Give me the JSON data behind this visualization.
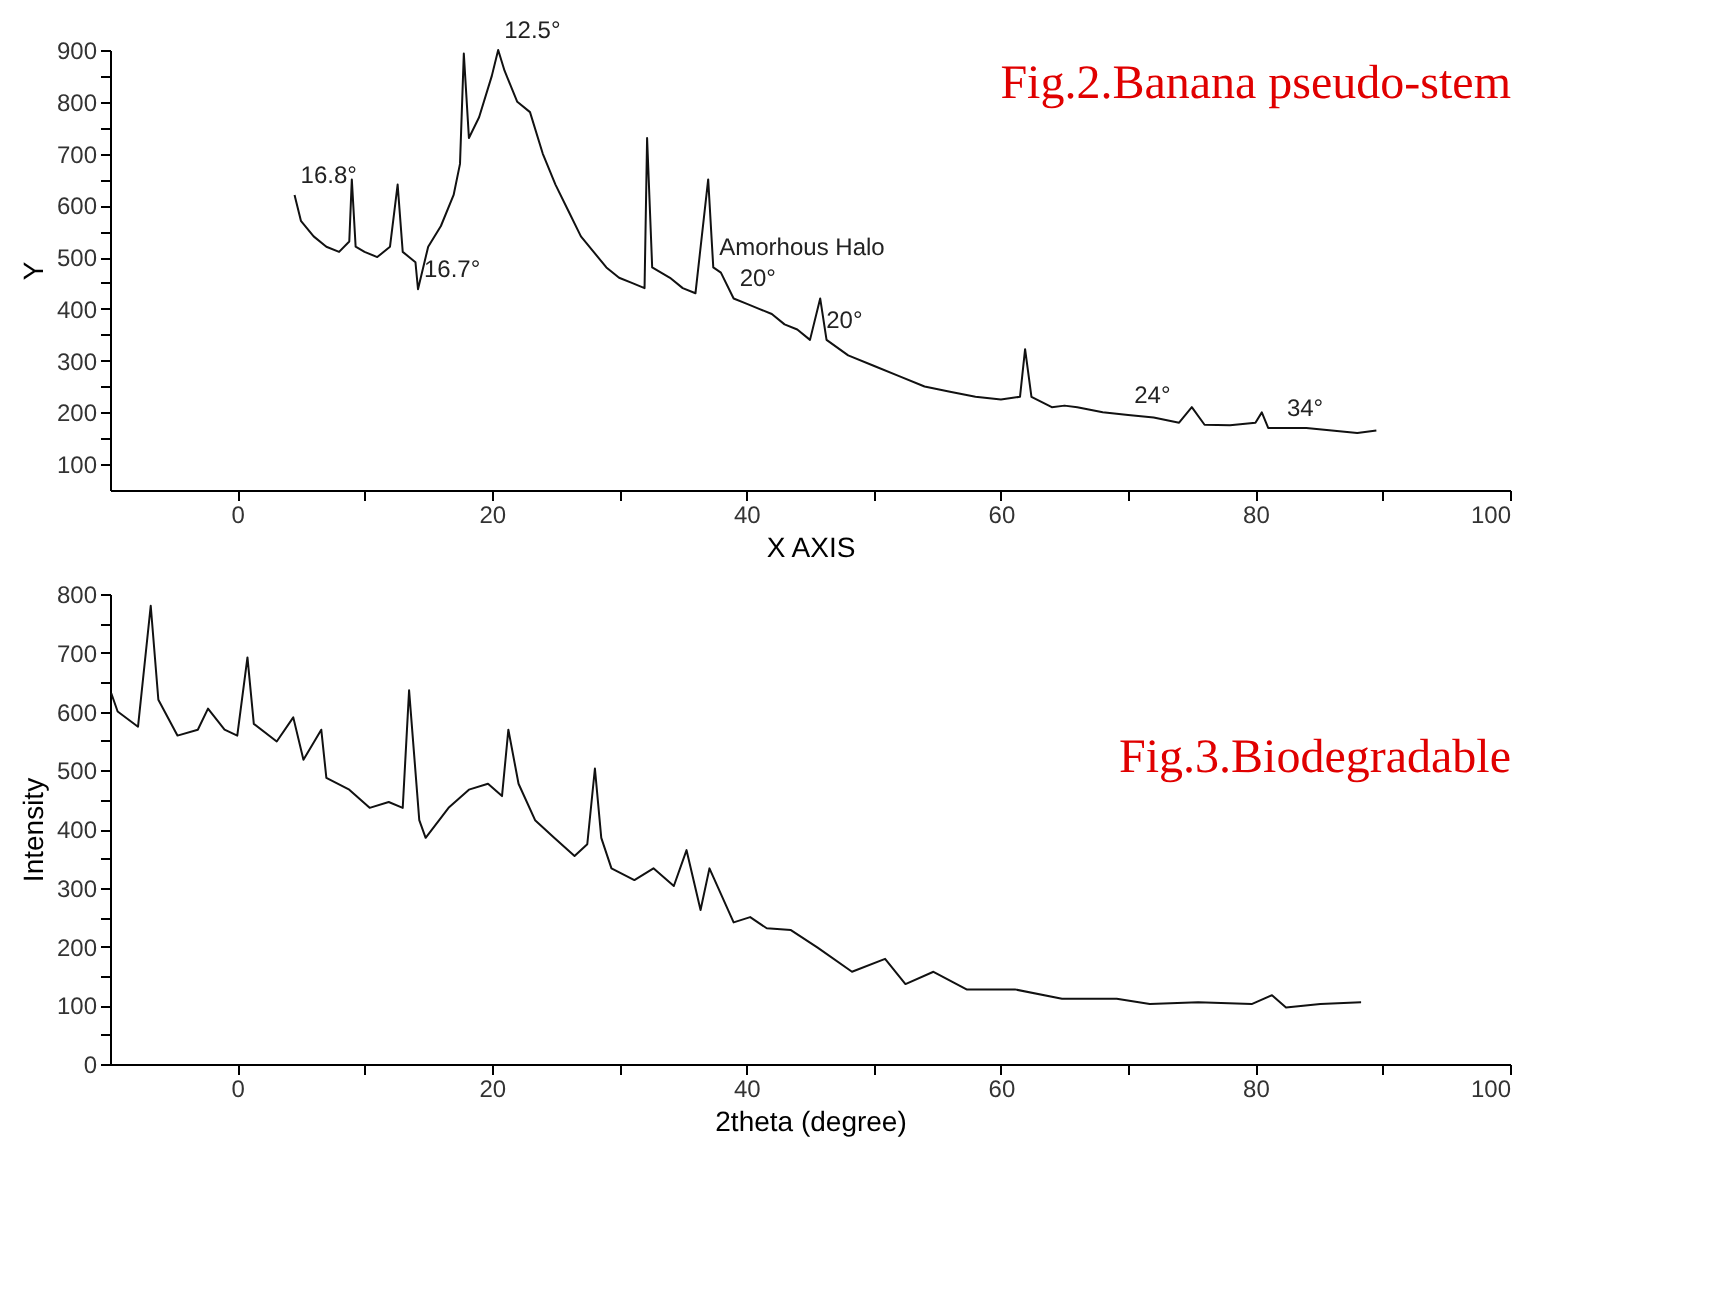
{
  "chart_data": [
    {
      "type": "line",
      "title": "Fig.2.Banana pseudo-stem",
      "xlabel": "X AXIS",
      "ylabel": "Y",
      "xlim": [
        -10,
        100
      ],
      "ylim": [
        50,
        900
      ],
      "xticks": [
        0,
        {
          "value": 10,
          "label": null
        },
        20,
        {
          "value": 30,
          "label": null
        },
        40,
        {
          "value": 50,
          "label": null
        },
        60,
        {
          "value": 70,
          "label": null
        },
        80,
        {
          "value": 90,
          "label": null
        },
        100
      ],
      "yticks": [
        100,
        {
          "value": 150,
          "label": null
        },
        200,
        {
          "value": 250,
          "label": null
        },
        300,
        {
          "value": 350,
          "label": null
        },
        400,
        {
          "value": 450,
          "label": null
        },
        500,
        {
          "value": 550,
          "label": null
        },
        600,
        {
          "value": 650,
          "label": null
        },
        700,
        {
          "value": 750,
          "label": null
        },
        800,
        {
          "value": 850,
          "label": null
        },
        900
      ],
      "grid": false,
      "marker": "none",
      "line_style": "solid",
      "series": [
        {
          "color": "#111111",
          "x": [
            4.5,
            5,
            6,
            7,
            8,
            8.8,
            9.0,
            9.3,
            10,
            11,
            12,
            12.6,
            13,
            14,
            14.2,
            15,
            16,
            17,
            17.5,
            17.8,
            18.2,
            19,
            20,
            20.5,
            21,
            22,
            23,
            24,
            25,
            26,
            27,
            28,
            29,
            30,
            31,
            32,
            32.2,
            32.6,
            34,
            35,
            36,
            37.0,
            37.4,
            38,
            39,
            40,
            41,
            42,
            43,
            44,
            45,
            45.8,
            46.3,
            48,
            50,
            52,
            54,
            56,
            58,
            60,
            61.5,
            61.9,
            62.4,
            64,
            65,
            66,
            68,
            70,
            72,
            74,
            75,
            76,
            78,
            80,
            80.5,
            81,
            84,
            86,
            88,
            89.5
          ],
          "values": [
            620,
            570,
            540,
            520,
            510,
            530,
            650,
            520,
            510,
            500,
            520,
            640,
            510,
            490,
            438,
            520,
            560,
            620,
            680,
            893,
            730,
            770,
            850,
            900,
            860,
            800,
            780,
            700,
            640,
            590,
            540,
            510,
            480,
            460,
            450,
            440,
            730,
            480,
            460,
            440,
            430,
            650,
            480,
            470,
            420,
            410,
            400,
            390,
            370,
            360,
            340,
            420,
            340,
            310,
            290,
            270,
            250,
            240,
            230,
            225,
            230,
            322,
            230,
            210,
            213,
            210,
            200,
            195,
            190,
            180,
            210,
            176,
            175,
            180,
            200,
            170,
            170,
            165,
            160,
            165
          ]
        }
      ],
      "annotations": [
        {
          "text": "12.5°",
          "x": 20.5,
          "y": 900
        },
        {
          "text": "16.8°",
          "x": 4.5,
          "y": 620
        },
        {
          "text": "16.7°",
          "x": 14.2,
          "y": 438
        },
        {
          "text": "Amorhous Halo",
          "x": 37.4,
          "y": 480
        },
        {
          "text": "20°",
          "x": 39,
          "y": 420
        },
        {
          "text": "20°",
          "x": 45.8,
          "y": 340
        },
        {
          "text": "24°",
          "x": 70,
          "y": 195
        },
        {
          "text": "34°",
          "x": 82,
          "y": 170
        }
      ]
    },
    {
      "type": "line",
      "title": "Fig.3.Biodegradable",
      "xlabel": "2theta (degree)",
      "ylabel": "Intensity",
      "xlim": [
        -10,
        100
      ],
      "ylim": [
        0,
        800
      ],
      "xticks": [
        0,
        {
          "value": 10,
          "label": null
        },
        20,
        {
          "value": 30,
          "label": null
        },
        40,
        {
          "value": 50,
          "label": null
        },
        60,
        {
          "value": 70,
          "label": null
        },
        80,
        {
          "value": 90,
          "label": null
        },
        100
      ],
      "yticks": [
        0,
        {
          "value": 50,
          "label": null
        },
        100,
        {
          "value": 150,
          "label": null
        },
        200,
        {
          "value": 250,
          "label": null
        },
        300,
        {
          "value": 350,
          "label": null
        },
        400,
        {
          "value": 450,
          "label": null
        },
        500,
        {
          "value": 550,
          "label": null
        },
        600,
        {
          "value": 650,
          "label": null
        },
        700,
        {
          "value": 750,
          "label": null
        },
        800
      ],
      "grid": false,
      "marker": "none",
      "line_style": "solid",
      "series": [
        {
          "color": "#111111",
          "x": [
            -9.9,
            -9.4,
            -7.8,
            -6.8,
            -6.2,
            -4.7,
            -3.1,
            -2.3,
            -1.0,
            0,
            0.8,
            1.3,
            3.1,
            4.4,
            5.2,
            6.6,
            7.0,
            8.8,
            10.4,
            11.9,
            13.0,
            13.5,
            14.3,
            14.8,
            16.6,
            18.2,
            19.7,
            20.8,
            21.3,
            22.1,
            23.4,
            24.9,
            26.5,
            27.5,
            28.1,
            28.6,
            29.4,
            31.2,
            32.7,
            34.3,
            35.3,
            36.4,
            37.1,
            39.0,
            40.3,
            41.6,
            43.5,
            45.6,
            48.3,
            50.9,
            52.5,
            54.7,
            57.3,
            61.1,
            64.8,
            69.1,
            71.7,
            75.5,
            79.7,
            81.3,
            82.4,
            85.1,
            88.3
          ],
          "values": [
            631,
            600,
            574,
            780,
            620,
            559,
            569,
            605,
            569,
            559,
            692,
            579,
            549,
            590,
            518,
            569,
            487,
            467,
            436,
            446,
            436,
            636,
            415,
            385,
            436,
            467,
            477,
            456,
            569,
            477,
            415,
            385,
            354,
            374,
            503,
            385,
            333,
            313,
            333,
            303,
            364,
            262,
            333,
            241,
            250,
            231,
            228,
            198,
            157,
            179,
            136,
            157,
            127,
            127,
            111,
            111,
            102,
            105,
            102,
            117,
            96,
            102,
            105
          ]
        }
      ]
    }
  ]
}
